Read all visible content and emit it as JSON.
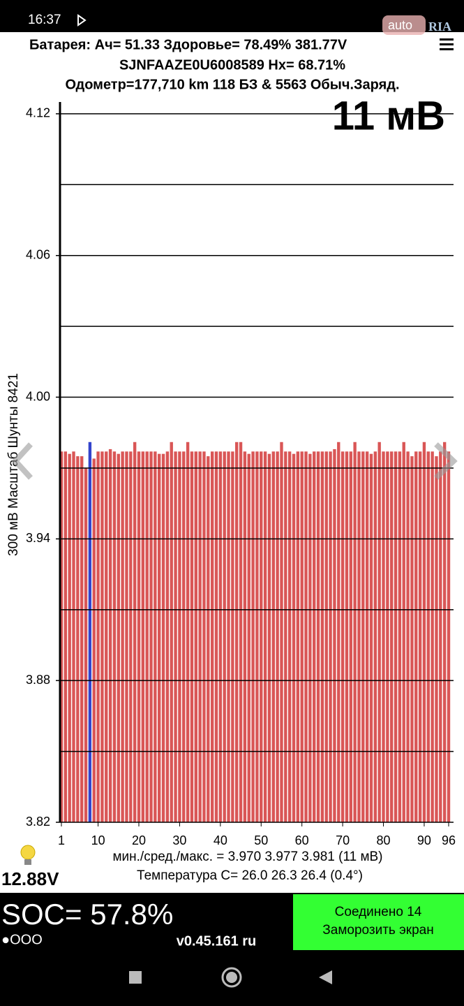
{
  "status_bar": {
    "time": "16:37"
  },
  "watermark": {
    "auto": "auto",
    "ria": "RIA"
  },
  "header": {
    "line1": "Батарея:  Ач= 51.33  Здоровье= 78.49%   381.77V",
    "line2": "SJNFAAZE0U6008589   Hx= 68.71%",
    "line3": "Одометр=177,710 km 118 БЗ & 5563 Обыч.Заряд."
  },
  "chart_data": {
    "type": "bar",
    "title": "11 мВ",
    "y_label": "300 мВ Масштаб  Шунты 8421",
    "x": [
      1,
      2,
      3,
      4,
      5,
      6,
      7,
      8,
      9,
      10,
      11,
      12,
      13,
      14,
      15,
      16,
      17,
      18,
      19,
      20,
      21,
      22,
      23,
      24,
      25,
      26,
      27,
      28,
      29,
      30,
      31,
      32,
      33,
      34,
      35,
      36,
      37,
      38,
      39,
      40,
      41,
      42,
      43,
      44,
      45,
      46,
      47,
      48,
      49,
      50,
      51,
      52,
      53,
      54,
      55,
      56,
      57,
      58,
      59,
      60,
      61,
      62,
      63,
      64,
      65,
      66,
      67,
      68,
      69,
      70,
      71,
      72,
      73,
      74,
      75,
      76,
      77,
      78,
      79,
      80,
      81,
      82,
      83,
      84,
      85,
      86,
      87,
      88,
      89,
      90,
      91,
      92,
      93,
      94,
      95,
      96
    ],
    "values": [
      3.977,
      3.977,
      3.976,
      3.977,
      3.975,
      3.975,
      3.97,
      3.981,
      3.974,
      3.977,
      3.977,
      3.977,
      3.978,
      3.977,
      3.976,
      3.977,
      3.977,
      3.977,
      3.981,
      3.977,
      3.977,
      3.977,
      3.977,
      3.977,
      3.976,
      3.976,
      3.977,
      3.981,
      3.977,
      3.977,
      3.977,
      3.981,
      3.977,
      3.977,
      3.977,
      3.977,
      3.975,
      3.977,
      3.977,
      3.977,
      3.977,
      3.977,
      3.977,
      3.981,
      3.981,
      3.977,
      3.976,
      3.977,
      3.977,
      3.977,
      3.977,
      3.976,
      3.977,
      3.977,
      3.981,
      3.977,
      3.977,
      3.976,
      3.977,
      3.977,
      3.977,
      3.976,
      3.977,
      3.977,
      3.977,
      3.977,
      3.977,
      3.978,
      3.981,
      3.977,
      3.977,
      3.977,
      3.981,
      3.977,
      3.977,
      3.977,
      3.976,
      3.977,
      3.981,
      3.977,
      3.977,
      3.977,
      3.977,
      3.977,
      3.981,
      3.977,
      3.975,
      3.977,
      3.977,
      3.981,
      3.977,
      3.977,
      3.975,
      3.977,
      3.981,
      3.977
    ],
    "color": "#d95656",
    "highlight": {
      "x": 8,
      "color": "#3344cc"
    },
    "xlim": [
      1,
      96
    ],
    "xticks": [
      1,
      10,
      20,
      30,
      40,
      50,
      60,
      70,
      80,
      90,
      96
    ],
    "ylim": [
      3.82,
      4.125
    ],
    "yticks": [
      3.82,
      3.88,
      3.94,
      {
        "value": 4.0,
        "label": "4.00"
      },
      4.06,
      4.12
    ],
    "minor_grid": [
      3.85,
      3.91,
      3.97,
      4.03,
      4.09
    ],
    "grid": true,
    "stats": "мин./сред./макс. = 3.970 3.977 3.981  (11 мВ)",
    "temperature": "Температура С= 26.0  26.3  26.4  (0.4°)"
  },
  "footer": {
    "aux_voltage": "12.88V",
    "soc": "SOC= 57.8%",
    "dots": "●OOO",
    "version": "v0.45.161 ru",
    "button_line1": "Соединено 14",
    "button_line2": "Заморозить экран"
  }
}
